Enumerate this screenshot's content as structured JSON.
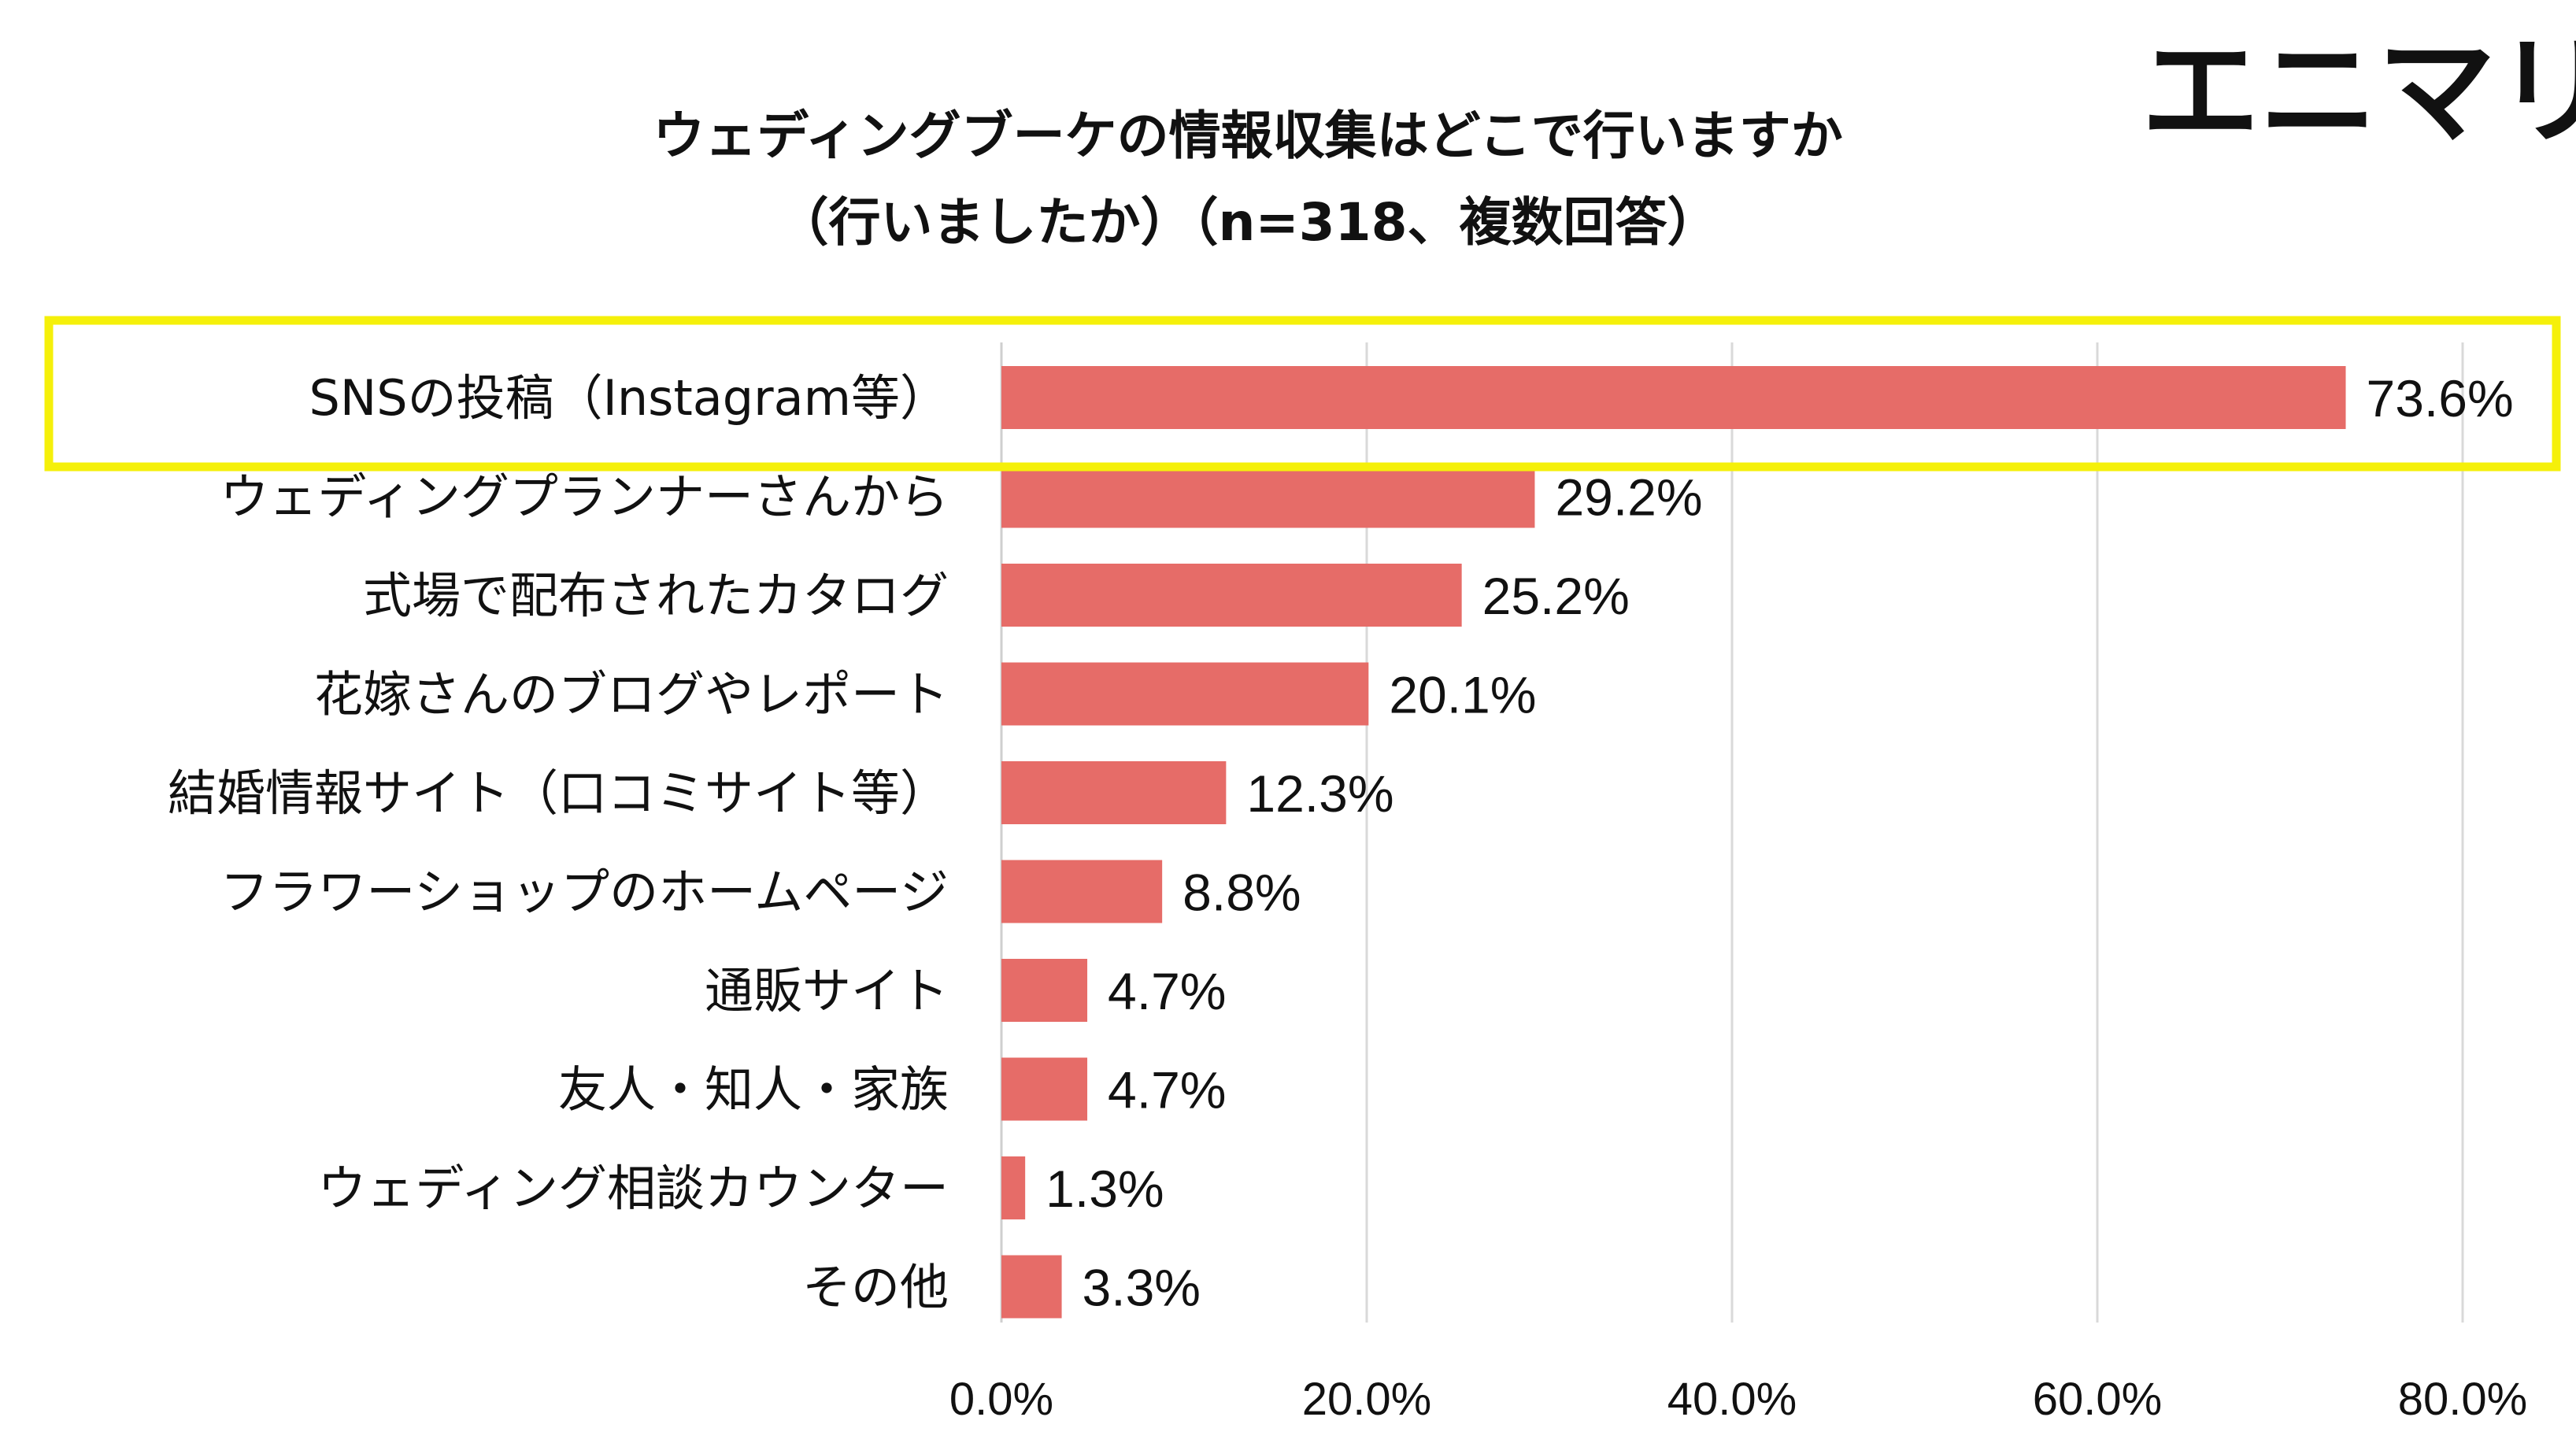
{
  "brand": "エニマリ",
  "chart_data": {
    "type": "bar",
    "orientation": "horizontal",
    "title": "ウェディングブーケの情報収集はどこで行いますか",
    "subtitle": "（行いましたか）（n=318、複数回答）",
    "categories": [
      "SNSの投稿（Instagram等）",
      "ウェディングプランナーさんから",
      "式場で配布されたカタログ",
      "花嫁さんのブログやレポート",
      "結婚情報サイト（口コミサイト等）",
      "フラワーショップのホームページ",
      "通販サイト",
      "友人・知人・家族",
      "ウェディング相談カウンター",
      "その他"
    ],
    "values": [
      73.6,
      29.2,
      25.2,
      20.1,
      12.3,
      8.8,
      4.7,
      4.7,
      1.3,
      3.3
    ],
    "value_labels": [
      "73.6%",
      "29.2%",
      "25.2%",
      "20.1%",
      "12.3%",
      "8.8%",
      "4.7%",
      "4.7%",
      "1.3%",
      "3.3%"
    ],
    "xlim": [
      0,
      80
    ],
    "x_ticks": [
      0,
      20,
      40,
      60,
      80
    ],
    "x_tick_labels": [
      "0.0%",
      "20.0%",
      "40.0%",
      "60.0%",
      "80.0%"
    ],
    "grid": true,
    "bar_color": "#e66c68",
    "highlight_index": 0,
    "highlight_color": "#f5f00a"
  }
}
